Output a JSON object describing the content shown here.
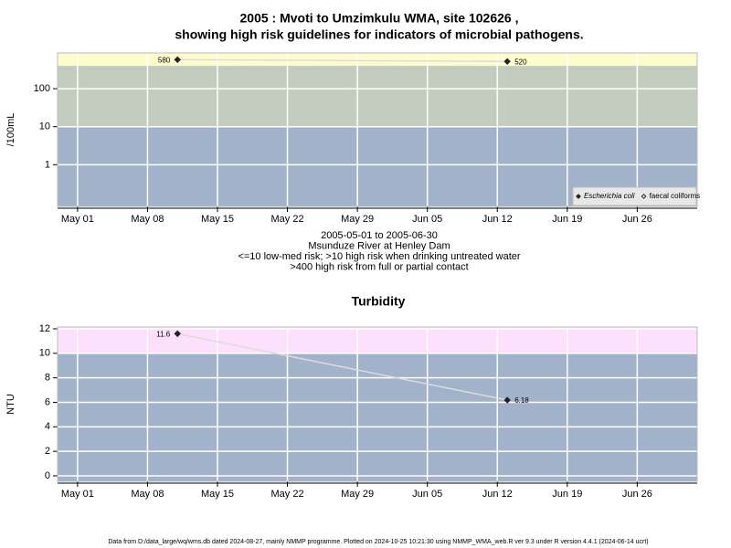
{
  "footer": "Data from D:/data_large/wq/wms.db dated 2024-08-27, mainly NMMP programme. Plotted on 2024-10-25 10:21:30 using NMMP_WMA_web.R ver 9.3 under R version 4.4.1 (2024-06-14 ucrt)",
  "chart_data": [
    {
      "type": "line",
      "title": "2005 : Mvoti to Umzimkulu WMA, site 102626 ,",
      "subtitle": "showing high risk guidelines for indicators of microbial pathogens.",
      "notes": [
        "2005-05-01 to 2005-06-30",
        "Msunduze River at Henley Dam",
        "<=10 low-med risk; >10 high risk when drinking untreated water",
        ">400 high risk from full or partial contact"
      ],
      "ylabel": "/100mL",
      "log_scale": true,
      "x": [
        "2005-05-11",
        "2005-06-13"
      ],
      "xlim": [
        "2005-04-29",
        "2005-07-02"
      ],
      "xticks": [
        {
          "value": "2005-05-01",
          "label": "May 01"
        },
        {
          "value": "2005-05-08",
          "label": "May 08"
        },
        {
          "value": "2005-05-15",
          "label": "May 15"
        },
        {
          "value": "2005-05-22",
          "label": "May 22"
        },
        {
          "value": "2005-05-29",
          "label": "May 29"
        },
        {
          "value": "2005-06-05",
          "label": "Jun 05"
        },
        {
          "value": "2005-06-12",
          "label": "Jun 12"
        },
        {
          "value": "2005-06-19",
          "label": "Jun 19"
        },
        {
          "value": "2005-06-26",
          "label": "Jun 26"
        }
      ],
      "ylim": [
        0.08,
        870
      ],
      "yticks": [
        1,
        10,
        100
      ],
      "thresholds": [
        10,
        400
      ],
      "band_colors": [
        "#a2b2cb",
        "#c3cdbf",
        "#fdfccf"
      ],
      "grid": true,
      "legend": "bottom-right",
      "series": [
        {
          "name": "Escherichia coli",
          "color": "#222222",
          "marker": "filled",
          "values": [
            580,
            520
          ]
        },
        {
          "name": "faecal coliforms",
          "color": "#222222",
          "marker": "open",
          "values": [
            null,
            null
          ]
        }
      ]
    },
    {
      "type": "line",
      "title": "Turbidity",
      "ylabel": "NTU",
      "log_scale": false,
      "x": [
        "2005-05-11",
        "2005-06-13"
      ],
      "xlim": [
        "2005-04-29",
        "2005-07-02"
      ],
      "xticks": [
        {
          "value": "2005-05-01",
          "label": "May 01"
        },
        {
          "value": "2005-05-08",
          "label": "May 08"
        },
        {
          "value": "2005-05-15",
          "label": "May 15"
        },
        {
          "value": "2005-05-22",
          "label": "May 22"
        },
        {
          "value": "2005-05-29",
          "label": "May 29"
        },
        {
          "value": "2005-06-05",
          "label": "Jun 05"
        },
        {
          "value": "2005-06-12",
          "label": "Jun 12"
        },
        {
          "value": "2005-06-19",
          "label": "Jun 19"
        },
        {
          "value": "2005-06-26",
          "label": "Jun 26"
        }
      ],
      "ylim": [
        -0.45,
        12.15
      ],
      "yticks": [
        0,
        2,
        4,
        6,
        8,
        10,
        12
      ],
      "thresholds": [
        10
      ],
      "band_colors": [
        "#a2b2cb",
        "#fde0fb"
      ],
      "grid": true,
      "series": [
        {
          "name": "Turbidity",
          "color": "#222222",
          "marker": "filled",
          "values": [
            11.6,
            6.18
          ]
        }
      ]
    }
  ]
}
